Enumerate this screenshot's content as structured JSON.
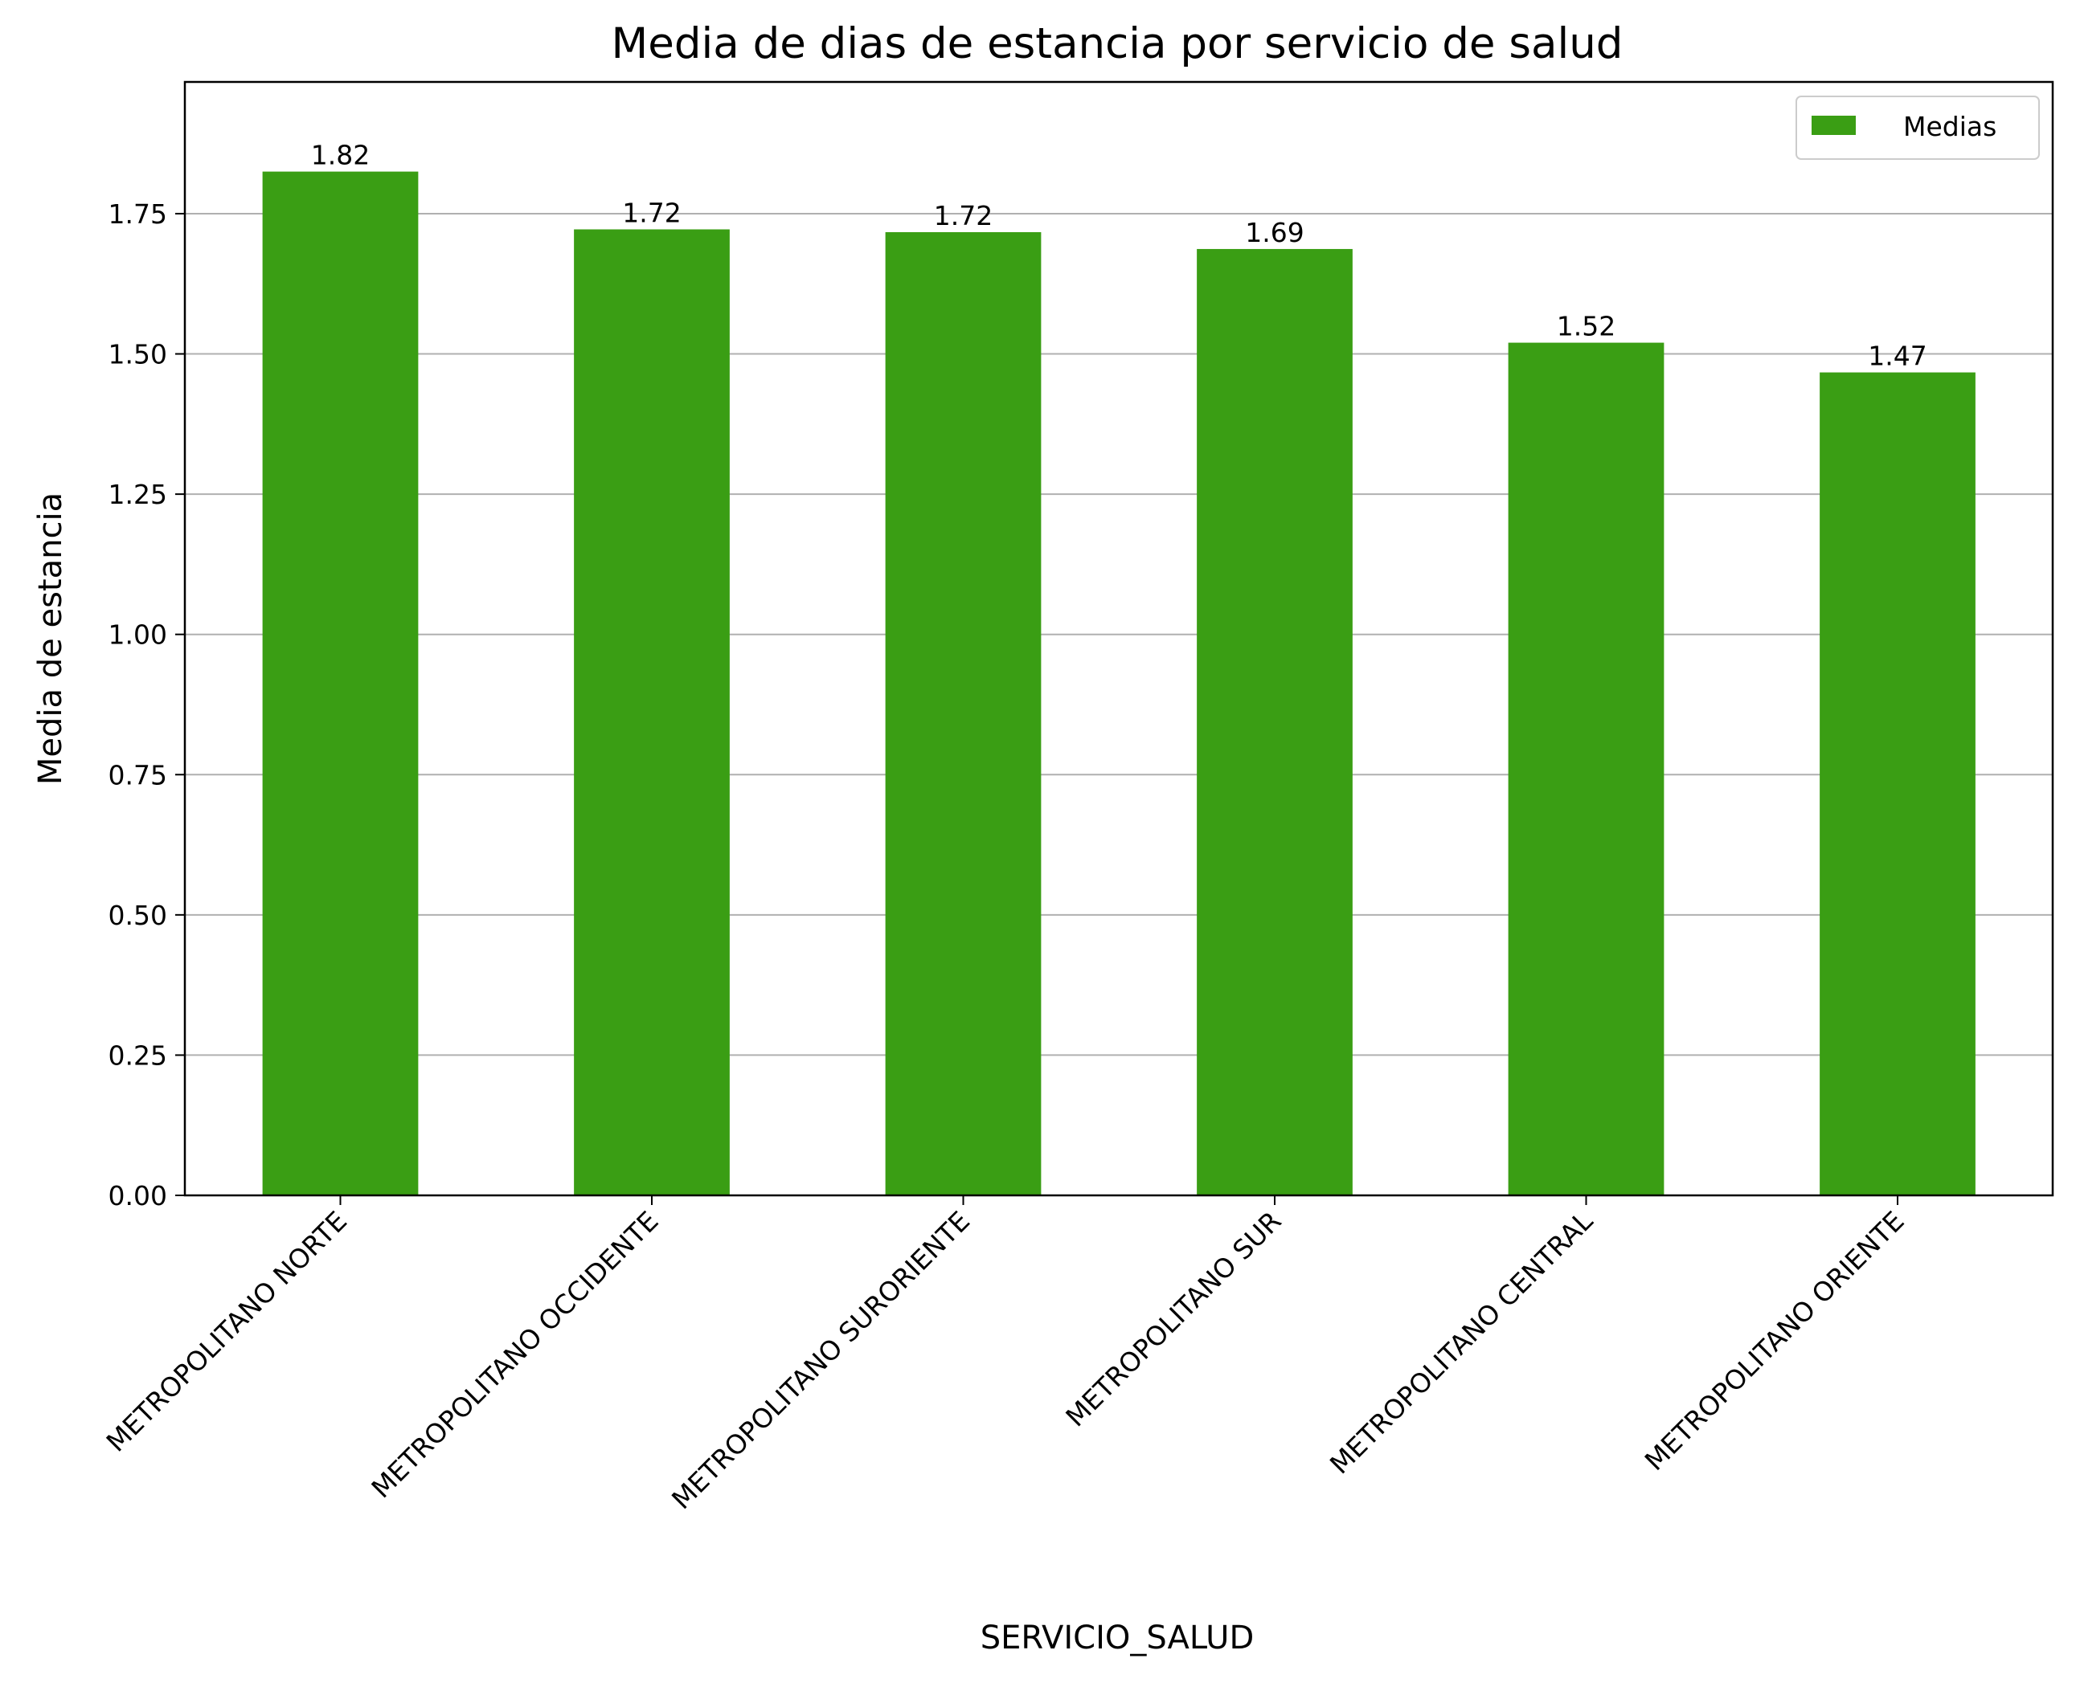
{
  "chart_data": {
    "type": "bar",
    "title": "Media de dias de estancia por servicio de salud",
    "xlabel": "SERVICIO_SALUD",
    "ylabel": "Media de estancia",
    "categories": [
      "METROPOLITANO NORTE",
      "METROPOLITANO OCCIDENTE",
      "METROPOLITANO SURORIENTE",
      "METROPOLITANO SUR",
      "METROPOLITANO CENTRAL",
      "METROPOLITANO ORIENTE"
    ],
    "series": [
      {
        "name": "Medias",
        "values": [
          1.825,
          1.722,
          1.717,
          1.687,
          1.52,
          1.467
        ],
        "labels": [
          "1.82",
          "1.72",
          "1.72",
          "1.69",
          "1.52",
          "1.47"
        ],
        "color": "#3a9e14"
      }
    ],
    "ylim": [
      0,
      1.9848
    ],
    "yticks": [
      "0.00",
      "0.25",
      "0.50",
      "0.75",
      "1.00",
      "1.25",
      "1.50",
      "1.75"
    ],
    "grid": "y",
    "legend": "top-right"
  }
}
